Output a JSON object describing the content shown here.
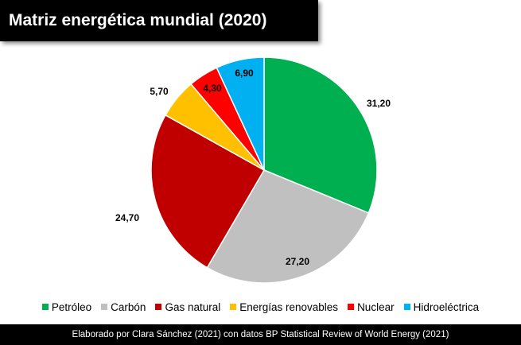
{
  "chart_data": {
    "type": "pie",
    "title": "Matriz energética mundial (2020)",
    "categories": [
      "Petróleo",
      "Carbón",
      "Gas natural",
      "Energías renovables",
      "Nuclear",
      "Hidroeléctrica"
    ],
    "values": [
      31.2,
      27.2,
      24.7,
      5.7,
      4.3,
      6.9
    ],
    "labels": [
      "31,20",
      "27,20",
      "24,70",
      "5,70",
      "4,30",
      "6,90"
    ],
    "colors": [
      "#00b050",
      "#c0c0c0",
      "#c00000",
      "#ffc000",
      "#ff0000",
      "#00b0f0"
    ],
    "legend_position": "bottom",
    "source": "Elaborado por Clara Sánchez (2021) con datos BP Statistical Review of World Energy (2021)"
  }
}
